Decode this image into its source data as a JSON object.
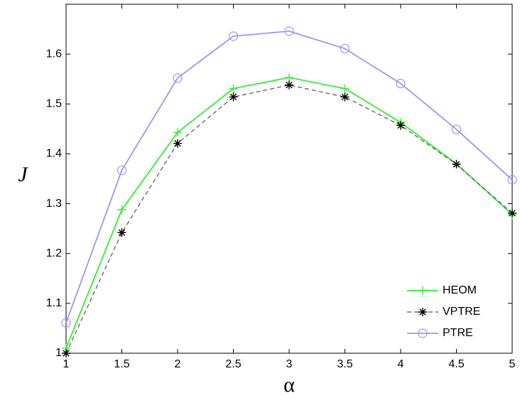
{
  "chart_data": {
    "type": "line",
    "x_label": "α",
    "y_label": "J",
    "x": [
      1,
      1.5,
      2,
      2.5,
      3,
      3.5,
      4,
      4.5,
      5
    ],
    "xlim": [
      1,
      5
    ],
    "xticks": [
      1,
      1.5,
      2,
      2.5,
      3,
      3.5,
      4,
      4.5,
      5
    ],
    "ylim": [
      1,
      1.7
    ],
    "yticks": [
      1,
      1.1,
      1.2,
      1.3,
      1.4,
      1.5,
      1.6
    ],
    "legend": "lower right",
    "series": [
      {
        "name": "HEOM",
        "color": "#33ee33",
        "marker": "plus",
        "dash": "solid",
        "values": [
          1.01,
          1.288,
          1.443,
          1.531,
          1.553,
          1.531,
          1.463,
          1.38,
          1.278
        ]
      },
      {
        "name": "VPTRE",
        "color": "#555555",
        "marker": "star",
        "dash": "dashed",
        "values": [
          1.0,
          1.242,
          1.421,
          1.514,
          1.538,
          1.514,
          1.457,
          1.379,
          1.281
        ]
      },
      {
        "name": "PTRE",
        "color": "#9999ee",
        "marker": "circle",
        "dash": "solid",
        "values": [
          1.061,
          1.367,
          1.552,
          1.636,
          1.646,
          1.611,
          1.541,
          1.449,
          1.348
        ]
      }
    ]
  }
}
